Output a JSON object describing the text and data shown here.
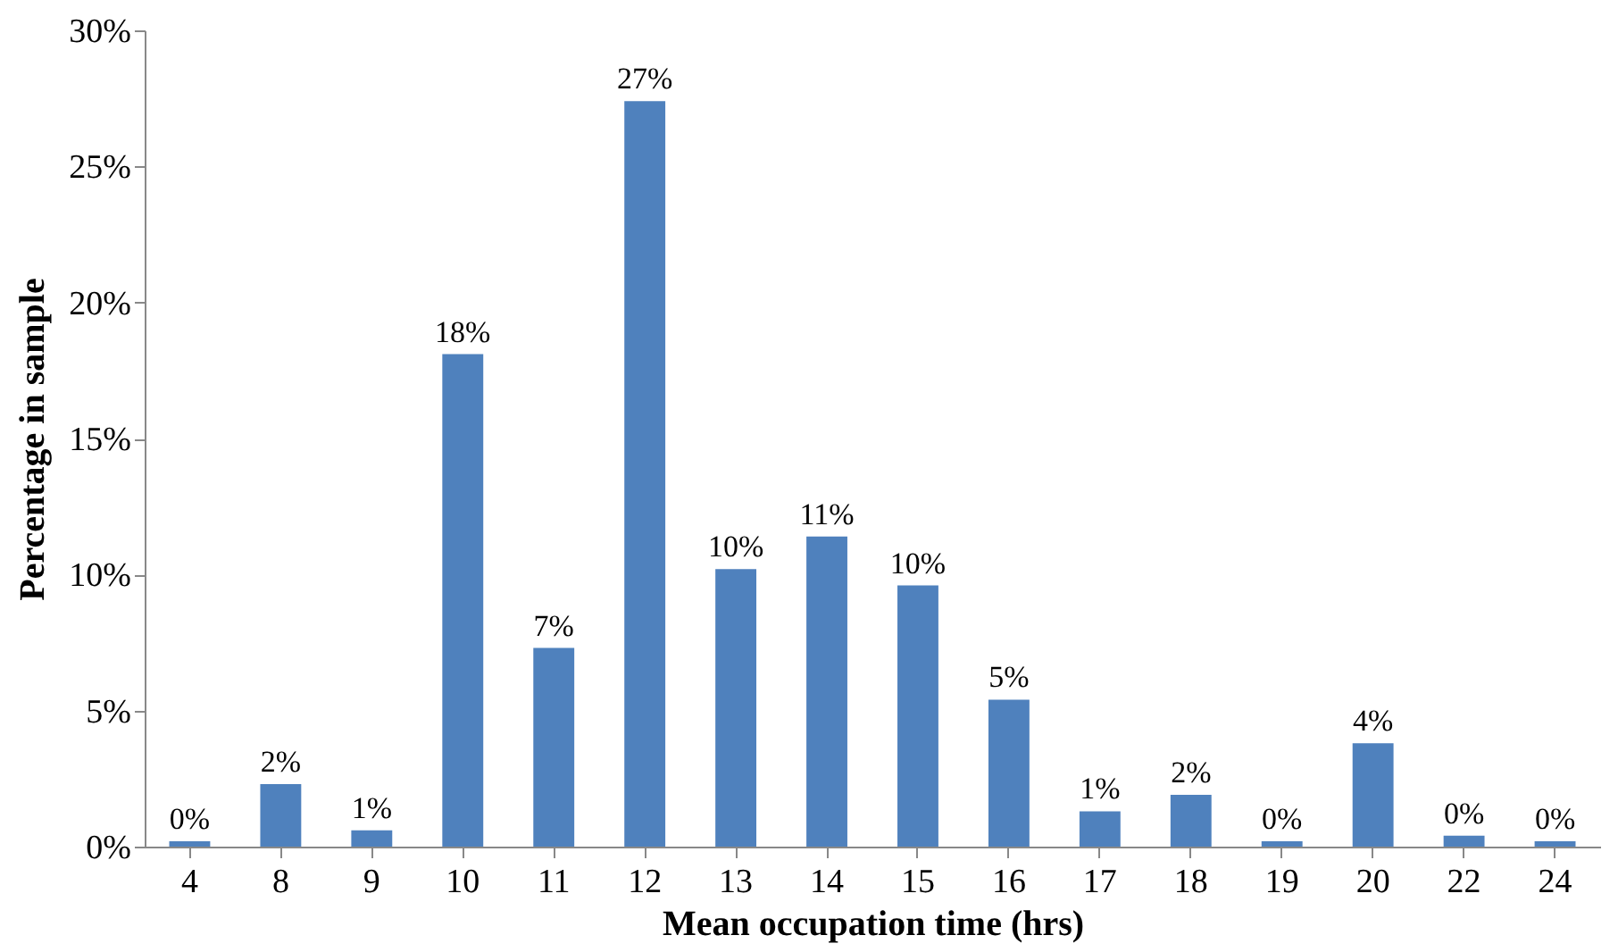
{
  "chart_data": {
    "type": "bar",
    "xlabel": "Mean occupation time (hrs)",
    "ylabel": "Percentage in sample",
    "categories": [
      "4",
      "8",
      "9",
      "10",
      "11",
      "12",
      "13",
      "14",
      "15",
      "16",
      "17",
      "18",
      "19",
      "20",
      "22",
      "24"
    ],
    "values": [
      0.2,
      2.3,
      0.6,
      18.1,
      7.3,
      27.4,
      10.2,
      11.4,
      9.6,
      5.4,
      1.3,
      1.9,
      0.2,
      3.8,
      0.4,
      0.2
    ],
    "value_labels": [
      "0%",
      "2%",
      "1%",
      "18%",
      "7%",
      "27%",
      "10%",
      "11%",
      "10%",
      "5%",
      "1%",
      "2%",
      "0%",
      "4%",
      "0%",
      "0%"
    ],
    "color": "#4f81bd",
    "ylim": [
      0,
      30
    ],
    "yticks": [
      {
        "value": 0,
        "label": "0%"
      },
      {
        "value": 5,
        "label": "5%"
      },
      {
        "value": 10,
        "label": "10%"
      },
      {
        "value": 15,
        "label": "15%"
      },
      {
        "value": 20,
        "label": "20%"
      },
      {
        "value": 25,
        "label": "25%"
      },
      {
        "value": 30,
        "label": "30%"
      }
    ]
  }
}
